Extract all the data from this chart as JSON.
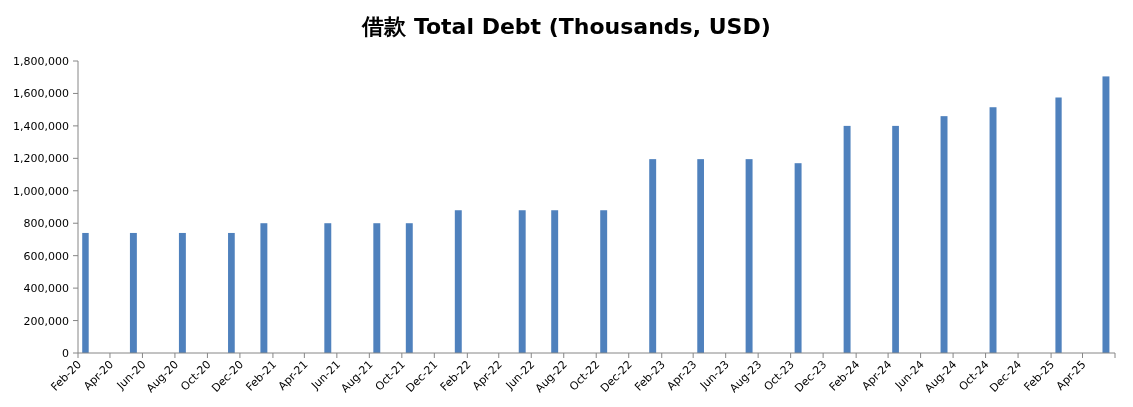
{
  "chart_data": {
    "type": "bar",
    "title": "借款 Total Debt (Thousands, USD)",
    "color": "#4f81bd",
    "x": [
      "2020-02-15",
      "2020-05-15",
      "2020-08-15",
      "2020-11-15",
      "2021-01-15",
      "2021-05-15",
      "2021-08-15",
      "2021-10-15",
      "2022-01-15",
      "2022-05-15",
      "2022-07-15",
      "2022-10-15",
      "2023-01-15",
      "2023-04-15",
      "2023-07-15",
      "2023-10-15",
      "2024-01-15",
      "2024-04-15",
      "2024-07-15",
      "2024-10-15",
      "2025-02-15",
      "2025-05-15"
    ],
    "values": [
      740000,
      740000,
      740000,
      740000,
      800000,
      800000,
      800000,
      800000,
      880000,
      880000,
      880000,
      880000,
      1195000,
      1195000,
      1195000,
      1170000,
      1400000,
      1400000,
      1460000,
      1515000,
      1575000,
      1705000
    ],
    "xlim": [
      "2020-02",
      "2025-06"
    ],
    "xticks": [
      {
        "value": "2020-02",
        "label": "Feb-20"
      },
      {
        "value": "2020-04",
        "label": "Apr-20"
      },
      {
        "value": "2020-06",
        "label": "Jun-20"
      },
      {
        "value": "2020-08",
        "label": "Aug-20"
      },
      {
        "value": "2020-10",
        "label": "Oct-20"
      },
      {
        "value": "2020-12",
        "label": "Dec-20"
      },
      {
        "value": "2021-02",
        "label": "Feb-21"
      },
      {
        "value": "2021-04",
        "label": "Apr-21"
      },
      {
        "value": "2021-06",
        "label": "Jun-21"
      },
      {
        "value": "2021-08",
        "label": "Aug-21"
      },
      {
        "value": "2021-10",
        "label": "Oct-21"
      },
      {
        "value": "2021-12",
        "label": "Dec-21"
      },
      {
        "value": "2022-02",
        "label": "Feb-22"
      },
      {
        "value": "2022-04",
        "label": "Apr-22"
      },
      {
        "value": "2022-06",
        "label": "Jun-22"
      },
      {
        "value": "2022-08",
        "label": "Aug-22"
      },
      {
        "value": "2022-10",
        "label": "Oct-22"
      },
      {
        "value": "2022-12",
        "label": "Dec-22"
      },
      {
        "value": "2023-02",
        "label": "Feb-23"
      },
      {
        "value": "2023-04",
        "label": "Apr-23"
      },
      {
        "value": "2023-06",
        "label": "Jun-23"
      },
      {
        "value": "2023-08",
        "label": "Aug-23"
      },
      {
        "value": "2023-10",
        "label": "Oct-23"
      },
      {
        "value": "2023-12",
        "label": "Dec-23"
      },
      {
        "value": "2024-02",
        "label": "Feb-24"
      },
      {
        "value": "2024-04",
        "label": "Apr-24"
      },
      {
        "value": "2024-06",
        "label": "Jun-24"
      },
      {
        "value": "2024-08",
        "label": "Aug-24"
      },
      {
        "value": "2024-10",
        "label": "Oct-24"
      },
      {
        "value": "2024-12",
        "label": "Dec-24"
      },
      {
        "value": "2025-02",
        "label": "Feb-25"
      },
      {
        "value": "2025-04",
        "label": "Apr-25"
      },
      {
        "value": "2025-06",
        "label": null
      }
    ],
    "ylim": [
      0,
      1800000
    ],
    "yticks": [
      0,
      {
        "value": 200000,
        "label": "200,000"
      },
      {
        "value": 400000,
        "label": "400,000"
      },
      {
        "value": 600000,
        "label": "600,000"
      },
      {
        "value": 800000,
        "label": "800,000"
      },
      {
        "value": 1000000,
        "label": "1,000,000"
      },
      {
        "value": 1200000,
        "label": "1,200,000"
      },
      {
        "value": 1400000,
        "label": "1,400,000"
      },
      {
        "value": 1600000,
        "label": "1,600,000"
      },
      {
        "value": 1800000,
        "label": "1,800,000"
      }
    ]
  }
}
